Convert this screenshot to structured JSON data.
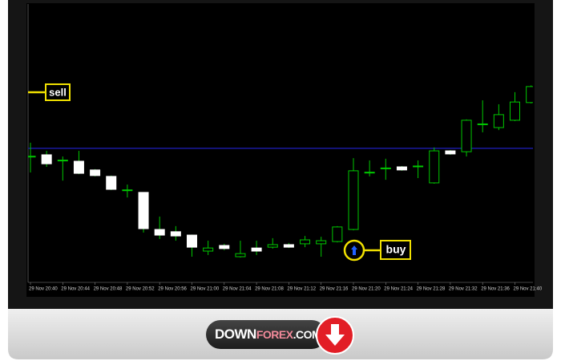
{
  "chart_data": {
    "type": "candlestick",
    "categories": [
      "29 Nov 20:40",
      null,
      "29 Nov 20:44",
      null,
      "29 Nov 20:48",
      null,
      "29 Nov 20:52",
      null,
      "29 Nov 20:56",
      null,
      "29 Nov 21:00",
      null,
      "29 Nov 21:04",
      null,
      "29 Nov 21:08",
      null,
      "29 Nov 21:12",
      null,
      "29 Nov 21:16",
      null,
      "29 Nov 21:20",
      null,
      "29 Nov 21:24",
      null,
      "29 Nov 21:28",
      null,
      "29 Nov 21:32",
      null,
      "29 Nov 21:36",
      null,
      "29 Nov 21:40",
      null
    ],
    "open": [
      45.5,
      46.3,
      44.3,
      44.0,
      40.9,
      38.6,
      33.7,
      32.9,
      19.7,
      18.9,
      17.7,
      12.0,
      14.0,
      10.0,
      13.1,
      13.4,
      14.3,
      14.6,
      14.6,
      15.4,
      19.7,
      40.0,
      41.4,
      42.0,
      42.2,
      36.3,
      47.7,
      47.4,
      57.1,
      56.0,
      58.6,
      64.9
    ],
    "high": [
      50.6,
      47.7,
      45.7,
      47.7,
      41.2,
      38.9,
      35.7,
      33.0,
      24.3,
      20.9,
      17.9,
      15.7,
      14.6,
      15.7,
      15.7,
      16.6,
      14.9,
      17.4,
      17.1,
      20.9,
      45.1,
      44.3,
      44.9,
      42.3,
      44.3,
      48.9,
      48.0,
      58.9,
      65.7,
      64.3,
      68.6,
      71.0
    ],
    "low": [
      40.0,
      42.0,
      37.1,
      39.4,
      38.6,
      33.7,
      31.1,
      18.6,
      16.3,
      15.7,
      10.0,
      10.6,
      12.3,
      9.7,
      10.6,
      12.9,
      13.1,
      13.4,
      10.0,
      15.1,
      19.4,
      38.6,
      37.4,
      40.6,
      38.0,
      36.0,
      46.3,
      45.7,
      54.3,
      55.1,
      58.3,
      64.6
    ],
    "close": [
      45.8,
      43.1,
      44.4,
      39.7,
      38.9,
      34.0,
      33.8,
      20.0,
      17.7,
      17.4,
      13.4,
      13.1,
      12.9,
      11.1,
      12.0,
      14.3,
      13.4,
      16.0,
      15.7,
      20.6,
      40.6,
      40.1,
      41.6,
      40.9,
      42.3,
      47.7,
      46.6,
      58.6,
      57.3,
      60.6,
      65.1,
      70.6
    ],
    "up_color": "#00c800",
    "down_color": "#ffffff",
    "ylim": [
      0,
      100
    ],
    "level": 48.6,
    "level_color": "#1a1aa0",
    "annotations": {
      "sell": "sell",
      "buy": "buy"
    }
  },
  "footer": {
    "logo_down": "DOWN",
    "logo_forex": "FOREX",
    "logo_com": ".COM"
  }
}
